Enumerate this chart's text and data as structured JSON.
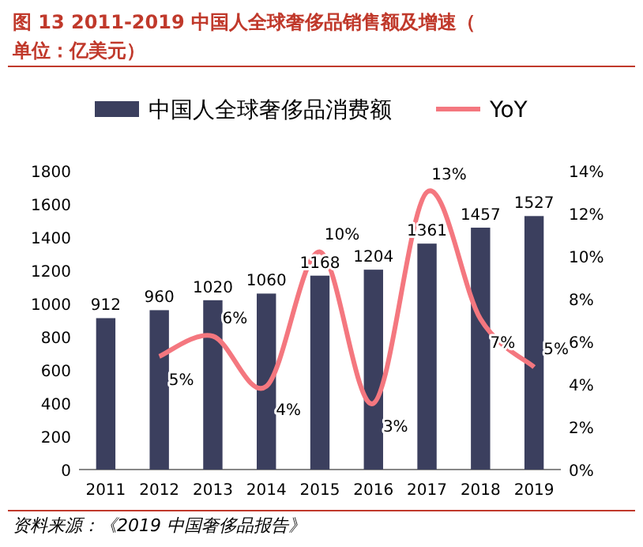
{
  "chart_data": {
    "type": "bar",
    "title": "图 13  2011-2019 中国人全球奢侈品销售额及增速（单位：亿美元）",
    "categories": [
      "2011",
      "2012",
      "2013",
      "2014",
      "2015",
      "2016",
      "2017",
      "2018",
      "2019"
    ],
    "series": [
      {
        "name": "中国人全球奢侈品消费额",
        "color": "#3b3f5e",
        "values": [
          912,
          960,
          1020,
          1060,
          1168,
          1204,
          1361,
          1457,
          1527
        ],
        "value_labels": [
          "912",
          "960",
          "1020",
          "1060",
          "1168",
          "1204",
          "1361",
          "1457",
          "1527"
        ]
      },
      {
        "name": "YoY",
        "type": "line",
        "axis": "y2",
        "color": "#f4777f",
        "values": [
          null,
          5.3,
          6.25,
          3.9,
          10.2,
          3.1,
          13.0,
          7.05,
          4.8
        ],
        "value_labels": [
          null,
          "5%",
          "6%",
          "4%",
          "10%",
          "3%",
          "13%",
          "7%",
          "5%"
        ]
      }
    ],
    "ylim": [
      0,
      1800
    ],
    "yticks": [
      0,
      200,
      400,
      600,
      800,
      1000,
      1200,
      1400,
      1600,
      1800
    ],
    "y2lim": [
      0,
      14
    ],
    "y2ticks": [
      {
        "value": 0,
        "label": "0%"
      },
      {
        "value": 2,
        "label": "2%"
      },
      {
        "value": 4,
        "label": "4%"
      },
      {
        "value": 6,
        "label": "6%"
      },
      {
        "value": 8,
        "label": "8%"
      },
      {
        "value": 10,
        "label": "10%"
      },
      {
        "value": 12,
        "label": "12%"
      },
      {
        "value": 14,
        "label": "14%"
      }
    ],
    "legend": "top",
    "annotations": [
      "资料来源：《2019 中国奢侈品报告》"
    ]
  }
}
